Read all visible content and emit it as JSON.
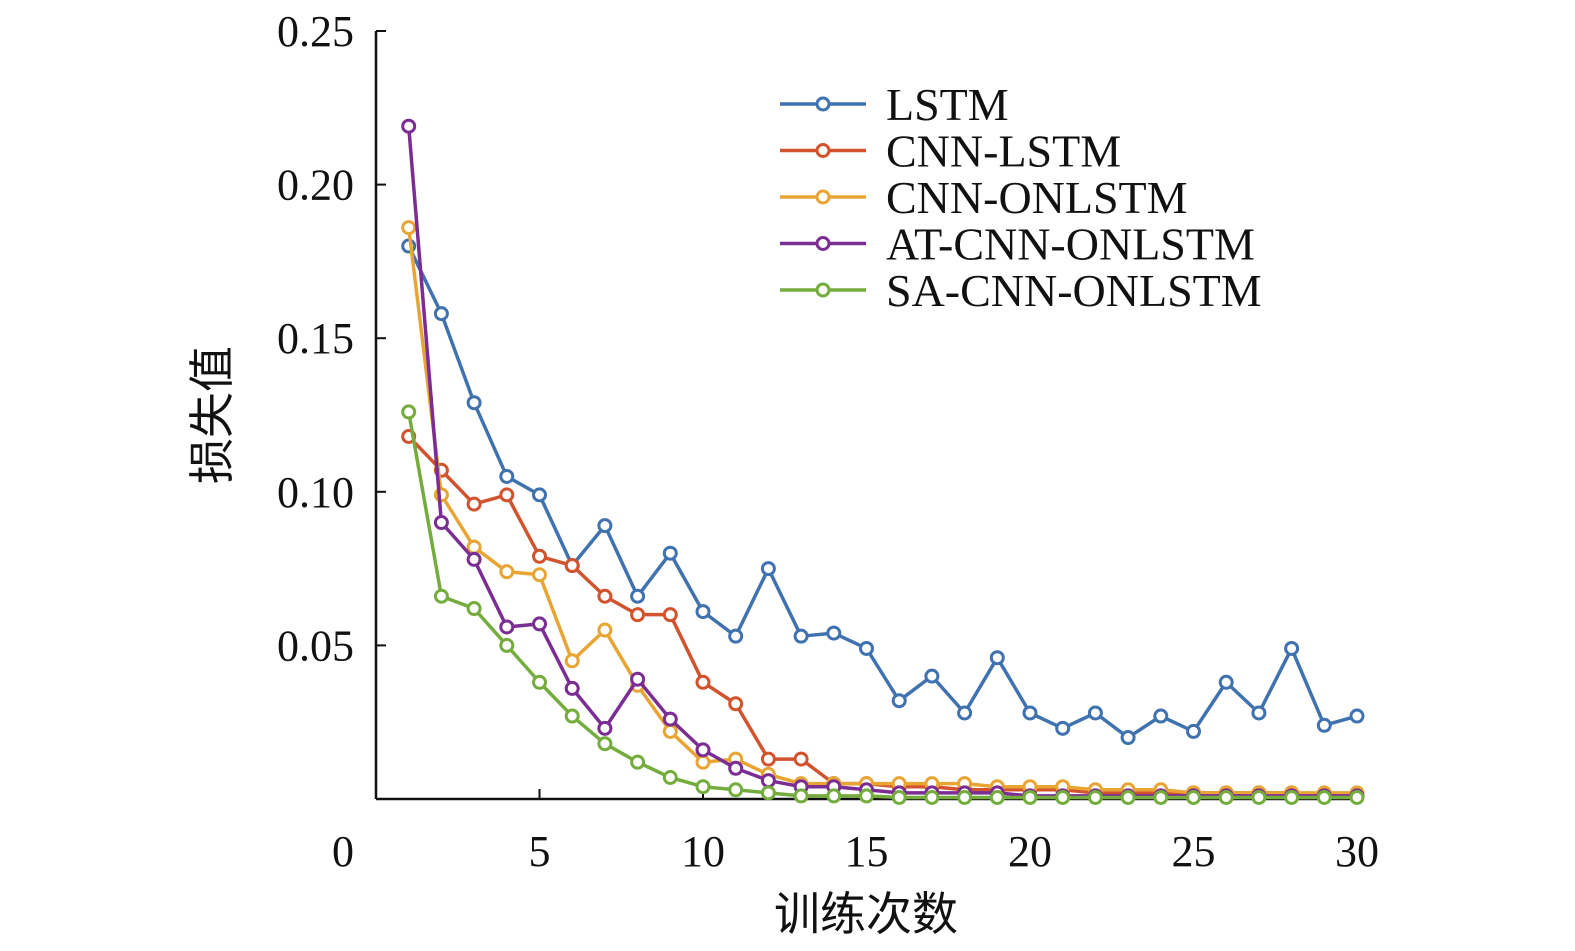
{
  "chart_data": {
    "type": "line",
    "title": "",
    "xlabel": "训练次数",
    "ylabel": "损失值",
    "xlim": [
      0,
      30
    ],
    "ylim": [
      0,
      0.25
    ],
    "xticks": [
      0,
      5,
      10,
      15,
      20,
      25,
      30
    ],
    "xtick_labels": [
      "0",
      "5",
      "10",
      "15",
      "20",
      "25",
      "30"
    ],
    "yticks": [
      0.05,
      0.1,
      0.15,
      0.2,
      0.25
    ],
    "ytick_labels": [
      "0.05",
      "0.10",
      "0.15",
      "0.20",
      "0.25"
    ],
    "grid": false,
    "legend_position": "top-right",
    "x": [
      1,
      2,
      3,
      4,
      5,
      6,
      7,
      8,
      9,
      10,
      11,
      12,
      13,
      14,
      15,
      16,
      17,
      18,
      19,
      20,
      21,
      22,
      23,
      24,
      25,
      26,
      27,
      28,
      29,
      30
    ],
    "series": [
      {
        "name": "LSTM",
        "color": "#3f72af",
        "values": [
          0.18,
          0.158,
          0.129,
          0.105,
          0.099,
          0.076,
          0.089,
          0.066,
          0.08,
          0.061,
          0.053,
          0.075,
          0.053,
          0.054,
          0.049,
          0.032,
          0.04,
          0.028,
          0.046,
          0.028,
          0.023,
          0.028,
          0.02,
          0.027,
          0.022,
          0.038,
          0.028,
          0.049,
          0.024,
          0.027
        ]
      },
      {
        "name": "CNN-LSTM",
        "color": "#d2532e",
        "values": [
          0.118,
          0.107,
          0.096,
          0.099,
          0.079,
          0.076,
          0.066,
          0.06,
          0.06,
          0.038,
          0.031,
          0.013,
          0.013,
          0.005,
          0.005,
          0.004,
          0.004,
          0.003,
          0.003,
          0.003,
          0.003,
          0.002,
          0.002,
          0.002,
          0.002,
          0.002,
          0.002,
          0.002,
          0.001,
          0.001
        ]
      },
      {
        "name": "CNN-ONLSTM",
        "color": "#e8a534",
        "values": [
          0.186,
          0.099,
          0.082,
          0.074,
          0.073,
          0.045,
          0.055,
          0.037,
          0.022,
          0.012,
          0.013,
          0.008,
          0.005,
          0.005,
          0.005,
          0.005,
          0.005,
          0.005,
          0.004,
          0.004,
          0.004,
          0.003,
          0.003,
          0.003,
          0.002,
          0.002,
          0.002,
          0.002,
          0.002,
          0.002
        ]
      },
      {
        "name": "AT-CNN-ONLSTM",
        "color": "#7b2d93",
        "values": [
          0.219,
          0.09,
          0.078,
          0.056,
          0.057,
          0.036,
          0.023,
          0.039,
          0.026,
          0.016,
          0.01,
          0.006,
          0.004,
          0.004,
          0.003,
          0.002,
          0.002,
          0.002,
          0.002,
          0.001,
          0.001,
          0.001,
          0.001,
          0.001,
          0.001,
          0.001,
          0.001,
          0.001,
          0.001,
          0.001
        ]
      },
      {
        "name": "SA-CNN-ONLSTM",
        "color": "#74ad3e",
        "values": [
          0.126,
          0.066,
          0.062,
          0.05,
          0.038,
          0.027,
          0.018,
          0.012,
          0.007,
          0.004,
          0.003,
          0.002,
          0.001,
          0.001,
          0.001,
          0.0005,
          0.0005,
          0.0005,
          0.0005,
          0.0005,
          0.0005,
          0.0005,
          0.0005,
          0.0005,
          0.0005,
          0.0005,
          0.0005,
          0.0005,
          0.0005,
          0.0005
        ]
      }
    ]
  }
}
